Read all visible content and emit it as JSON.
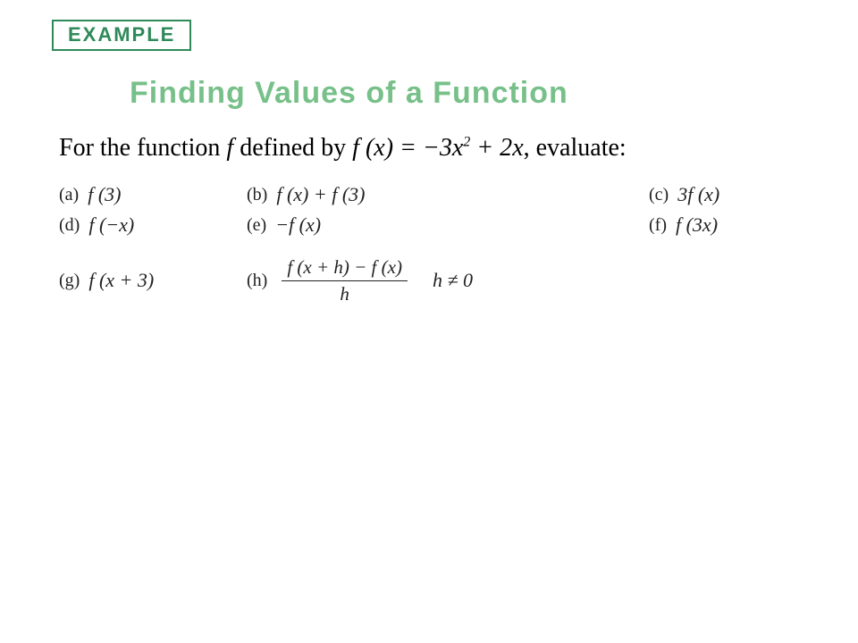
{
  "colors": {
    "badge_border": "#2f8a5a",
    "badge_text": "#2f8a5a",
    "title_text": "#77c089",
    "body_text": "#000000",
    "item_text": "#222222",
    "background": "#ffffff"
  },
  "fonts": {
    "badge": {
      "family": "Arial",
      "size_pt": 16,
      "weight": 700
    },
    "title": {
      "family": "Arial",
      "size_pt": 26,
      "weight": 700
    },
    "prompt": {
      "family": "Times New Roman",
      "size_pt": 21
    },
    "items": {
      "family": "Times New Roman",
      "size_pt": 16
    }
  },
  "badge": {
    "text": "EXAMPLE"
  },
  "title": "Finding Values of a Function",
  "prompt": {
    "pre": "For the function ",
    "f": "f",
    "mid": " defined by ",
    "def_html": "f (x) = −3x² + 2x",
    "post": ", evaluate:"
  },
  "items": {
    "a": {
      "label": "(a)",
      "expr": "f (3)"
    },
    "b": {
      "label": "(b)",
      "expr": "f (x) + f (3)"
    },
    "c": {
      "label": "(c)",
      "expr": "3f (x)"
    },
    "d": {
      "label": "(d)",
      "expr": "f (−x)"
    },
    "e": {
      "label": "(e)",
      "expr": "−f (x)"
    },
    "f": {
      "label": "(f)",
      "expr": "f (3x)"
    },
    "g": {
      "label": "(g)",
      "expr": "f (x + 3)"
    },
    "h": {
      "label": "(h)",
      "numerator": "f (x + h) − f (x)",
      "denominator": "h",
      "condition": "h ≠ 0"
    }
  }
}
